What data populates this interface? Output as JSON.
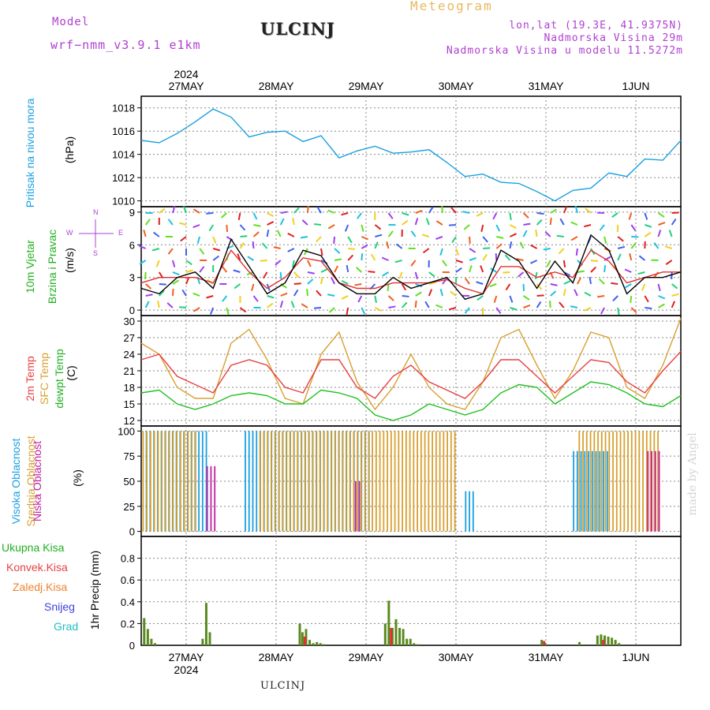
{
  "header": {
    "model_label": "Model",
    "model_name": "wrf−nmm_v3.9.1  e1km",
    "title": "ULCINJ",
    "meteogram": "Meteogram",
    "lonlat": "lon,lat (19.3E, 41.9375N)",
    "elevation": "Nadmorska Visina 29m",
    "model_elevation": "Nadmorska Visina u modelu 11.5272m"
  },
  "watermark": "made by Angel",
  "footer": "ULCINJ",
  "time_axis": {
    "year": "2024",
    "days": [
      "27MAY",
      "28MAY",
      "29MAY",
      "30MAY",
      "31MAY",
      "1JUN"
    ]
  },
  "colors": {
    "pressure": "#1aa0e0",
    "wind_speed": "#000000",
    "wind_gust": "#e03030",
    "temp_2m": "#e84040",
    "temp_sfc": "#d8a030",
    "dewpoint": "#20c020",
    "cloud_high": "#1aa0e0",
    "cloud_mid": "#d8a030",
    "cloud_low": "#c020a0",
    "precip_total": "#5a8a20",
    "precip_conv": "#e03030"
  },
  "labels": {
    "pressure": [
      "Pritisak na nivou mora",
      "(hPa)"
    ],
    "wind": [
      "10m Vjetar",
      "Brzina i Pravac",
      "(m/s)"
    ],
    "compass": [
      "N",
      "W",
      "E",
      "S"
    ],
    "temp": [
      "2m Temp",
      "SFC Temp",
      "dewpt Temp",
      "(C)"
    ],
    "cloud": [
      "Visoka Oblacnost",
      "Srednja Oblacnost",
      "Niska  Oblacnost",
      "(%)"
    ],
    "precip_legend": [
      "Ukupna Kisa",
      "Konvek.Kisa",
      "Zaledj.Kisa",
      "Snijeg",
      "Grad"
    ],
    "precip_unit": "1hr Precip (mm)"
  },
  "chart_data": [
    {
      "type": "line",
      "title": "",
      "ylabel": "Pritisak na nivou mora (hPa)",
      "ylim": [
        1009.5,
        1019
      ],
      "yticks": [
        1010,
        1012,
        1014,
        1016,
        1018
      ],
      "x_units": "days since 26MAY 12:00",
      "series": [
        {
          "name": "MSLP",
          "x": [
            0,
            0.2,
            0.4,
            0.6,
            0.8,
            1.0,
            1.2,
            1.4,
            1.6,
            1.8,
            2.0,
            2.2,
            2.4,
            2.6,
            2.8,
            3.0,
            3.2,
            3.4,
            3.6,
            3.8,
            4.0,
            4.2,
            4.4,
            4.6,
            4.8,
            5.0,
            5.2,
            5.4,
            5.6,
            5.8,
            6.0
          ],
          "values": [
            1015.2,
            1015.0,
            1015.8,
            1016.8,
            1017.9,
            1017.2,
            1015.5,
            1015.9,
            1016.0,
            1015.1,
            1015.6,
            1013.7,
            1014.3,
            1014.7,
            1014.1,
            1014.2,
            1014.4,
            1013.3,
            1012.1,
            1012.3,
            1011.6,
            1011.5,
            1010.8,
            1010.0,
            1010.9,
            1011.1,
            1012.4,
            1012.1,
            1013.6,
            1013.5,
            1015.2
          ]
        }
      ]
    },
    {
      "type": "line",
      "title": "",
      "ylabel": "10m Vjetar Brzina i Pravac (m/s)",
      "ylim": [
        -0.5,
        9.5
      ],
      "yticks": [
        0,
        3,
        6,
        9
      ],
      "x_units": "days since 26MAY 12:00",
      "series": [
        {
          "name": "wind speed",
          "x": [
            0,
            0.2,
            0.4,
            0.6,
            0.8,
            1.0,
            1.2,
            1.4,
            1.6,
            1.8,
            2.0,
            2.2,
            2.4,
            2.6,
            2.8,
            3.0,
            3.2,
            3.4,
            3.6,
            3.8,
            4.0,
            4.2,
            4.4,
            4.6,
            4.8,
            5.0,
            5.2,
            5.4,
            5.6,
            5.8,
            6.0
          ],
          "values": [
            2.0,
            1.5,
            3.0,
            3.5,
            2.0,
            6.5,
            4.0,
            1.5,
            2.5,
            5.5,
            5.0,
            2.5,
            1.5,
            1.5,
            3.0,
            2.0,
            2.5,
            3.0,
            1.0,
            1.5,
            5.5,
            4.5,
            2.0,
            4.5,
            2.5,
            6.9,
            5.5,
            1.5,
            3.0,
            3.0,
            3.5
          ]
        },
        {
          "name": "wind gust",
          "x": [
            0,
            0.2,
            0.4,
            0.6,
            0.8,
            1.0,
            1.2,
            1.4,
            1.6,
            1.8,
            2.0,
            2.2,
            2.4,
            2.6,
            2.8,
            3.0,
            3.2,
            3.4,
            3.6,
            3.8,
            4.0,
            4.2,
            4.4,
            4.6,
            4.8,
            5.0,
            5.2,
            5.4,
            5.6,
            5.8,
            6.0
          ],
          "values": [
            2.5,
            3.0,
            3.0,
            3.0,
            2.5,
            5.5,
            3.5,
            2.0,
            3.0,
            4.8,
            4.5,
            2.5,
            2.0,
            2.0,
            2.5,
            2.5,
            2.5,
            2.8,
            2.0,
            1.5,
            4.0,
            4.0,
            3.0,
            3.5,
            3.0,
            5.5,
            4.5,
            2.5,
            3.0,
            3.5,
            3.5
          ]
        }
      ]
    },
    {
      "type": "line",
      "title": "",
      "ylabel": "(C)",
      "ylim": [
        11,
        31
      ],
      "yticks": [
        12,
        15,
        18,
        21,
        24,
        27,
        30
      ],
      "x_units": "days since 26MAY 12:00",
      "series": [
        {
          "name": "2m Temp",
          "x": [
            0,
            0.2,
            0.4,
            0.6,
            0.8,
            1.0,
            1.2,
            1.4,
            1.6,
            1.8,
            2.0,
            2.2,
            2.4,
            2.6,
            2.8,
            3.0,
            3.2,
            3.4,
            3.6,
            3.8,
            4.0,
            4.2,
            4.4,
            4.6,
            4.8,
            5.0,
            5.2,
            5.4,
            5.6,
            5.8,
            6.0
          ],
          "values": [
            23,
            24,
            20,
            18.5,
            17,
            22,
            23,
            22,
            18,
            17,
            23,
            23,
            18,
            16,
            20,
            22,
            19,
            17.5,
            16,
            19,
            23,
            23,
            20,
            17,
            20,
            23,
            22.5,
            19,
            17,
            21,
            24.5
          ]
        },
        {
          "name": "SFC Temp",
          "x": [
            0,
            0.2,
            0.4,
            0.6,
            0.8,
            1.0,
            1.2,
            1.4,
            1.6,
            1.8,
            2.0,
            2.2,
            2.4,
            2.6,
            2.8,
            3.0,
            3.2,
            3.4,
            3.6,
            3.8,
            4.0,
            4.2,
            4.4,
            4.6,
            4.8,
            5.0,
            5.2,
            5.4,
            5.6,
            5.8,
            6.0
          ],
          "values": [
            26,
            24,
            18,
            16,
            16,
            26,
            28.5,
            23,
            16,
            15,
            24,
            28,
            19,
            14,
            18,
            24,
            18,
            15,
            14,
            19,
            27,
            28.5,
            22,
            16,
            21,
            28,
            27,
            18,
            16,
            22,
            30.5
          ]
        },
        {
          "name": "dewpt Temp",
          "x": [
            0,
            0.2,
            0.4,
            0.6,
            0.8,
            1.0,
            1.2,
            1.4,
            1.6,
            1.8,
            2.0,
            2.2,
            2.4,
            2.6,
            2.8,
            3.0,
            3.2,
            3.4,
            3.6,
            3.8,
            4.0,
            4.2,
            4.4,
            4.6,
            4.8,
            5.0,
            5.2,
            5.4,
            5.6,
            5.8,
            6.0
          ],
          "values": [
            17,
            17.5,
            15,
            14,
            15,
            16.5,
            17,
            16.5,
            15,
            15,
            17.5,
            17,
            16,
            13,
            12,
            13,
            15,
            14,
            13,
            14,
            17,
            18.5,
            18,
            15,
            17,
            19,
            18.5,
            17,
            15,
            14.5,
            16.5
          ]
        }
      ]
    },
    {
      "type": "bar",
      "title": "",
      "ylabel": "(%)",
      "ylim": [
        -5,
        105
      ],
      "yticks": [
        0,
        25,
        50,
        75,
        100
      ],
      "x_units": "days since 26MAY 12:00",
      "note_blocks": "cloud fraction blocks, value per hour",
      "series": [
        {
          "name": "Visoka Oblacnost",
          "blocks": [
            [
              0.05,
              0.75,
              100
            ],
            [
              1.15,
              2.55,
              100
            ],
            [
              4.8,
              5.2,
              80
            ],
            [
              3.6,
              3.7,
              40
            ]
          ]
        },
        {
          "name": "Srednja Oblacnost",
          "blocks": [
            [
              0.0,
              0.6,
              100
            ],
            [
              1.3,
              3.5,
              100
            ],
            [
              4.85,
              5.75,
              100
            ]
          ]
        },
        {
          "name": "Niska  Oblacnost",
          "blocks": [
            [
              0.7,
              0.8,
              65
            ],
            [
              5.6,
              5.75,
              80
            ],
            [
              2.35,
              2.4,
              50
            ]
          ]
        }
      ]
    },
    {
      "type": "bar",
      "title": "",
      "ylabel": "1hr Precip (mm)",
      "ylim": [
        0,
        1.0
      ],
      "yticks": [
        0.2,
        0.4,
        0.6,
        0.8
      ],
      "x_units": "days since 26MAY 12:00",
      "series": [
        {
          "name": "Ukupna Kisa",
          "x": [
            0.02,
            0.06,
            0.1,
            0.14,
            0.67,
            0.71,
            0.75,
            1.75,
            1.78,
            1.82,
            1.86,
            1.9,
            1.94,
            1.98,
            2.02,
            2.7,
            2.74,
            2.78,
            2.82,
            2.86,
            2.9,
            2.94,
            2.98,
            3.02,
            3.06,
            4.44,
            4.48,
            4.86,
            5.06,
            5.1,
            5.14,
            5.18,
            5.22,
            5.26,
            5.3
          ],
          "values": [
            0.25,
            0.15,
            0.06,
            0.02,
            0.06,
            0.39,
            0.12,
            0.2,
            0.12,
            0.15,
            0.05,
            0.02,
            0.03,
            0.02,
            0.01,
            0.2,
            0.41,
            0.16,
            0.24,
            0.16,
            0.15,
            0.06,
            0.06,
            0.02,
            0.01,
            0.05,
            0.02,
            0.03,
            0.09,
            0.1,
            0.09,
            0.08,
            0.07,
            0.05,
            0.02
          ]
        },
        {
          "name": "Konvek.Kisa",
          "x": [
            1.78,
            2.74,
            4.44,
            5.1
          ],
          "values": [
            0.08,
            0.16,
            0.04,
            0.05
          ]
        }
      ]
    }
  ]
}
